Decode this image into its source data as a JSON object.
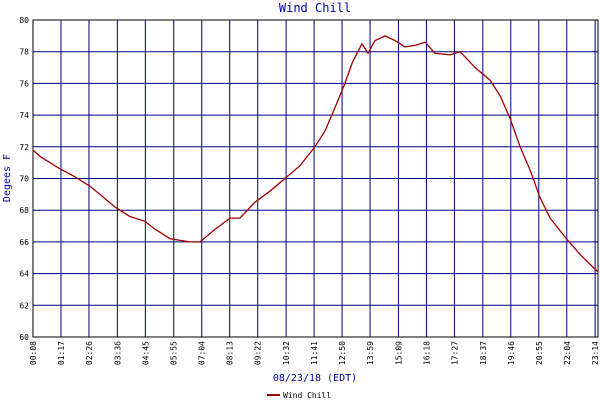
{
  "chart_data": {
    "type": "line",
    "title": "Wind Chill",
    "y_label": "Degees F",
    "x_label": "08/23/18 (EDT)",
    "xlim": [
      8,
      1401
    ],
    "xticks": [
      {
        "value": 8,
        "label": "00:08"
      },
      {
        "value": 77,
        "label": "01:17"
      },
      {
        "value": 146,
        "label": "02:26"
      },
      {
        "value": 216,
        "label": "03:36"
      },
      {
        "value": 285,
        "label": "04:45"
      },
      {
        "value": 355,
        "label": "05:55"
      },
      {
        "value": 424,
        "label": "07:04"
      },
      {
        "value": 493,
        "label": "08:13"
      },
      {
        "value": 562,
        "label": "09:22"
      },
      {
        "value": 632,
        "label": "10:32"
      },
      {
        "value": 701,
        "label": "11:41"
      },
      {
        "value": 770,
        "label": "12:50"
      },
      {
        "value": 839,
        "label": "13:59"
      },
      {
        "value": 909,
        "label": "15:09"
      },
      {
        "value": 978,
        "label": "16:18"
      },
      {
        "value": 1047,
        "label": "17:27"
      },
      {
        "value": 1117,
        "label": "18:37"
      },
      {
        "value": 1186,
        "label": "19:46"
      },
      {
        "value": 1255,
        "label": "20:55"
      },
      {
        "value": 1324,
        "label": "22:04"
      },
      {
        "value": 1394,
        "label": "23:14"
      }
    ],
    "ylim": [
      60,
      80
    ],
    "yticks": [
      60,
      62,
      64,
      66,
      68,
      70,
      72,
      74,
      76,
      78,
      80
    ],
    "grid": true,
    "x": [
      8,
      25,
      75,
      112,
      149,
      173,
      210,
      247,
      284,
      309,
      346,
      395,
      420,
      457,
      494,
      518,
      555,
      592,
      629,
      666,
      703,
      728,
      753,
      777,
      795,
      819,
      834,
      851,
      876,
      901,
      925,
      950,
      975,
      999,
      1036,
      1061,
      1098,
      1135,
      1160,
      1184,
      1209,
      1234,
      1258,
      1283,
      1320,
      1357,
      1401
    ],
    "series": [
      {
        "name": "Wind Chill",
        "color": "#a00000",
        "values": [
          71.8,
          71.4,
          70.6,
          70.1,
          69.5,
          69.0,
          68.2,
          67.6,
          67.3,
          66.8,
          66.2,
          66.0,
          66.0,
          66.8,
          67.5,
          67.5,
          68.5,
          69.2,
          70.0,
          70.8,
          72.0,
          73.0,
          74.5,
          76.0,
          77.3,
          78.5,
          77.9,
          78.7,
          79.0,
          78.7,
          78.3,
          78.4,
          78.6,
          77.9,
          77.8,
          78.0,
          77.0,
          76.2,
          75.2,
          73.8,
          72.0,
          70.5,
          68.8,
          67.5,
          66.3,
          65.2,
          64.1
        ]
      }
    ]
  }
}
